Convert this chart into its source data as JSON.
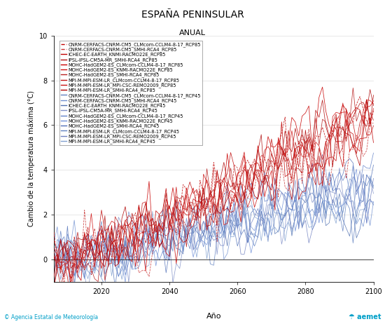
{
  "title": "ESPAÑA PENINSULAR",
  "subtitle": "ANUAL",
  "ylabel": "Cambio de la temperatura máxima (°C)",
  "xlabel": "Año",
  "xlim": [
    2006,
    2100
  ],
  "ylim": [
    -1,
    10
  ],
  "yticks": [
    0,
    2,
    4,
    6,
    8,
    10
  ],
  "xticks": [
    2020,
    2040,
    2060,
    2080,
    2100
  ],
  "legend_rcp85": [
    "CNRM-CERFACS-CNRM-CM5_CLMcom-CCLM4-8-17_RCP85",
    "CNRM-CERFACS-CNRM-CM5_SMHI-RCA4_RCP85",
    "ICHEC-EC-EARTH_KNMI-RACMO22E_RCP85",
    "IPSL-IPSL-CM5A-MR_SMHI-RCA4_RCP85",
    "MOHC-HadGEM2-ES_CLMcom-CCLM4-8-17_RCP85",
    "MOHC-HadGEM2-ES_KNMI-RACMO22E_RCP85",
    "MOHC-HadGEM2-ES_SMHI-RCA4_RCP85",
    "MPI-M-MPI-ESM-LR_CLMcom-CCLM4-8-17_RCP85",
    "MPI-M-MPI-ESM-LR_MPI-CSC-REMO2009_RCP85",
    "MPI-M-MPI-ESM-LR_SMHI-RCA4_RCP85"
  ],
  "legend_rcp45": [
    "CNRM-CERFACS-CNRM-CM5_CLMcom-CCLM4-8-17_RCP45",
    "CNRM-CERFACS-CNRM-CM5_SMHI-RCA4_RCP45",
    "ICHEC-EC-EARTH_KNMI-RACMO22E_RCP45",
    "IPSL-IPSL-CM5A-MR_SMHI-RCA4_RCP45",
    "MOHC-HadGEM2-ES_CLMcom-CCLM4-8-17_RCP45",
    "MOHC-HadGEM2-ES_KNMI-RACMO22E_RCP45",
    "MOHC-HadGEM2-ES_SMHI-RCA4_RCP45",
    "MPI-M-MPI-ESM-LR_CLMcom-CCLM4-8-17_RCP45",
    "MPI-M-MPI-ESM-LR_MPI-CSC-REMO2009_RCP45",
    "MPI-M-MPI-ESM-LR_SMHI-RCA4_RCP45"
  ],
  "rcp85_colors": [
    "#c00000",
    "#c83030",
    "#c00000",
    "#b01010",
    "#c80000",
    "#d01010",
    "#b82020",
    "#c01010",
    "#c81010",
    "#b00000"
  ],
  "rcp45_colors": [
    "#6080c0",
    "#7090d0",
    "#5070b0",
    "#8090c8",
    "#6080c8",
    "#7090d8",
    "#5070b8",
    "#6080c0",
    "#7080c0",
    "#80a0d0"
  ],
  "rcp85_trends": [
    6.5,
    5.8,
    5.5,
    6.8,
    7.5,
    6.2,
    7.0,
    5.8,
    6.3,
    6.0
  ],
  "rcp45_trends": [
    3.2,
    2.8,
    2.5,
    3.5,
    4.0,
    3.0,
    3.8,
    2.8,
    3.2,
    3.0
  ],
  "start_year": 2006,
  "end_year": 2100,
  "noise_scale": 0.75,
  "aemet_color": "#009FC8",
  "background_color": "#ffffff",
  "legend_fontsize": 4.8,
  "axis_fontsize": 8,
  "title_fontsize": 10,
  "subtitle_fontsize": 8,
  "line_width": 0.55
}
